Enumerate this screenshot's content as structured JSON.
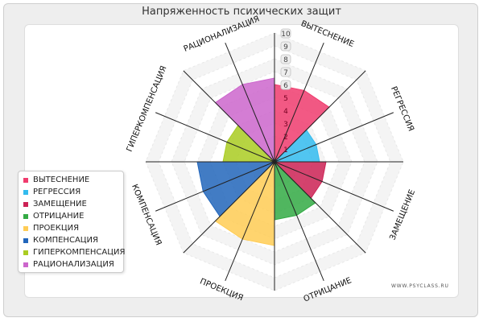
{
  "watermark": "WWW.PSYCLASS.RU",
  "chart_data": {
    "type": "radar",
    "title": "Напряженность психических защит",
    "axes": [
      "ВЫТЕСНЕНИЕ",
      "РЕГРЕССИЯ",
      "ЗАМЕЩЕНИЕ",
      "ОТРИЦАНИЕ",
      "ПРОЕКЦИЯ",
      "КОМПЕНСАЦИЯ",
      "ГИПЕРКОМПЕНСАЦИЯ",
      "РАЦИОНАЛИЗАЦИЯ"
    ],
    "scale_ticks": [
      "1",
      "2",
      "3",
      "4",
      "5",
      "6",
      "7",
      "8",
      "9",
      "10"
    ],
    "rmax": 10,
    "series": [
      {
        "name": "ВЫТЕСНЕНИЕ",
        "value": 6,
        "color": "#f03c6e"
      },
      {
        "name": "РЕГРЕССИЯ",
        "value": 3.5,
        "color": "#33bbee"
      },
      {
        "name": "ЗАМЕЩЕНИЕ",
        "value": 4,
        "color": "#cc2255"
      },
      {
        "name": "ОТРИЦАНИЕ",
        "value": 4.5,
        "color": "#33aa44"
      },
      {
        "name": "ПРОЕКЦИЯ",
        "value": 6.5,
        "color": "#ffcc55"
      },
      {
        "name": "КОМПЕНСАЦИЯ",
        "value": 6,
        "color": "#2266bb"
      },
      {
        "name": "ГИПЕРКОМПЕНСАЦИЯ",
        "value": 4,
        "color": "#aacc22"
      },
      {
        "name": "РАЦИОНАЛИЗАЦИЯ",
        "value": 6.5,
        "color": "#cc66cc"
      }
    ],
    "legend_position": "left",
    "grid": true
  }
}
